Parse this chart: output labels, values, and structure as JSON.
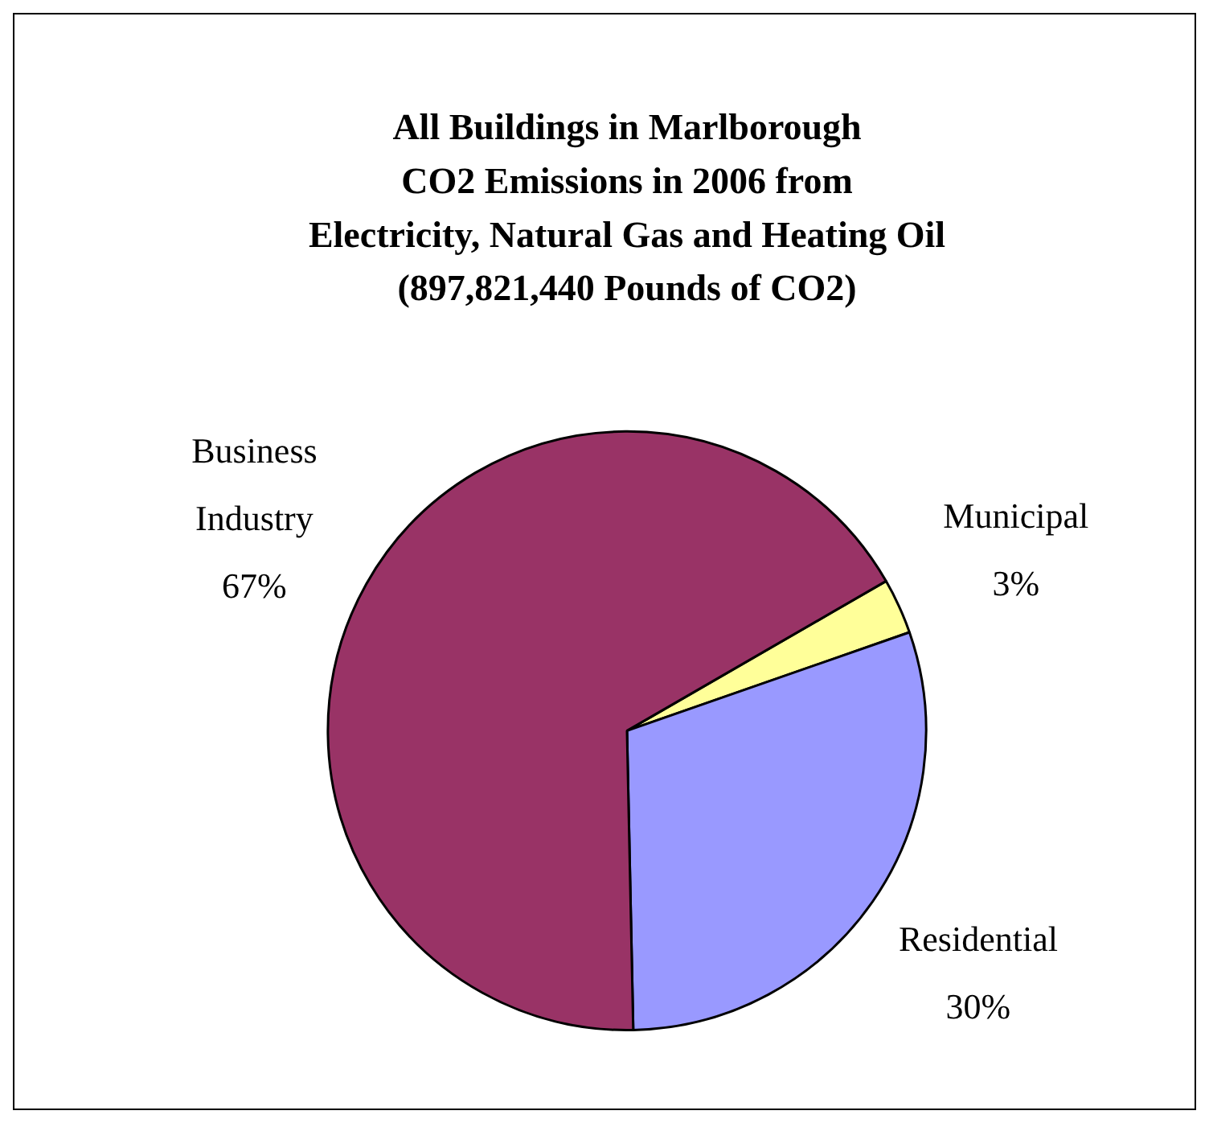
{
  "chart_data": {
    "type": "pie",
    "title": "All Buildings in Marlborough\nCO2 Emissions in 2006 from\nElectricity, Natural Gas and Heating Oil\n(897,821,440 Pounds of CO2)",
    "categories": [
      "Municipal",
      "Residential",
      "Business Industry"
    ],
    "values": [
      3,
      30,
      67
    ],
    "value_labels": [
      "3%",
      "30%",
      "67%"
    ],
    "colors": [
      "#ffff99",
      "#9999ff",
      "#993366"
    ],
    "legend": false
  }
}
